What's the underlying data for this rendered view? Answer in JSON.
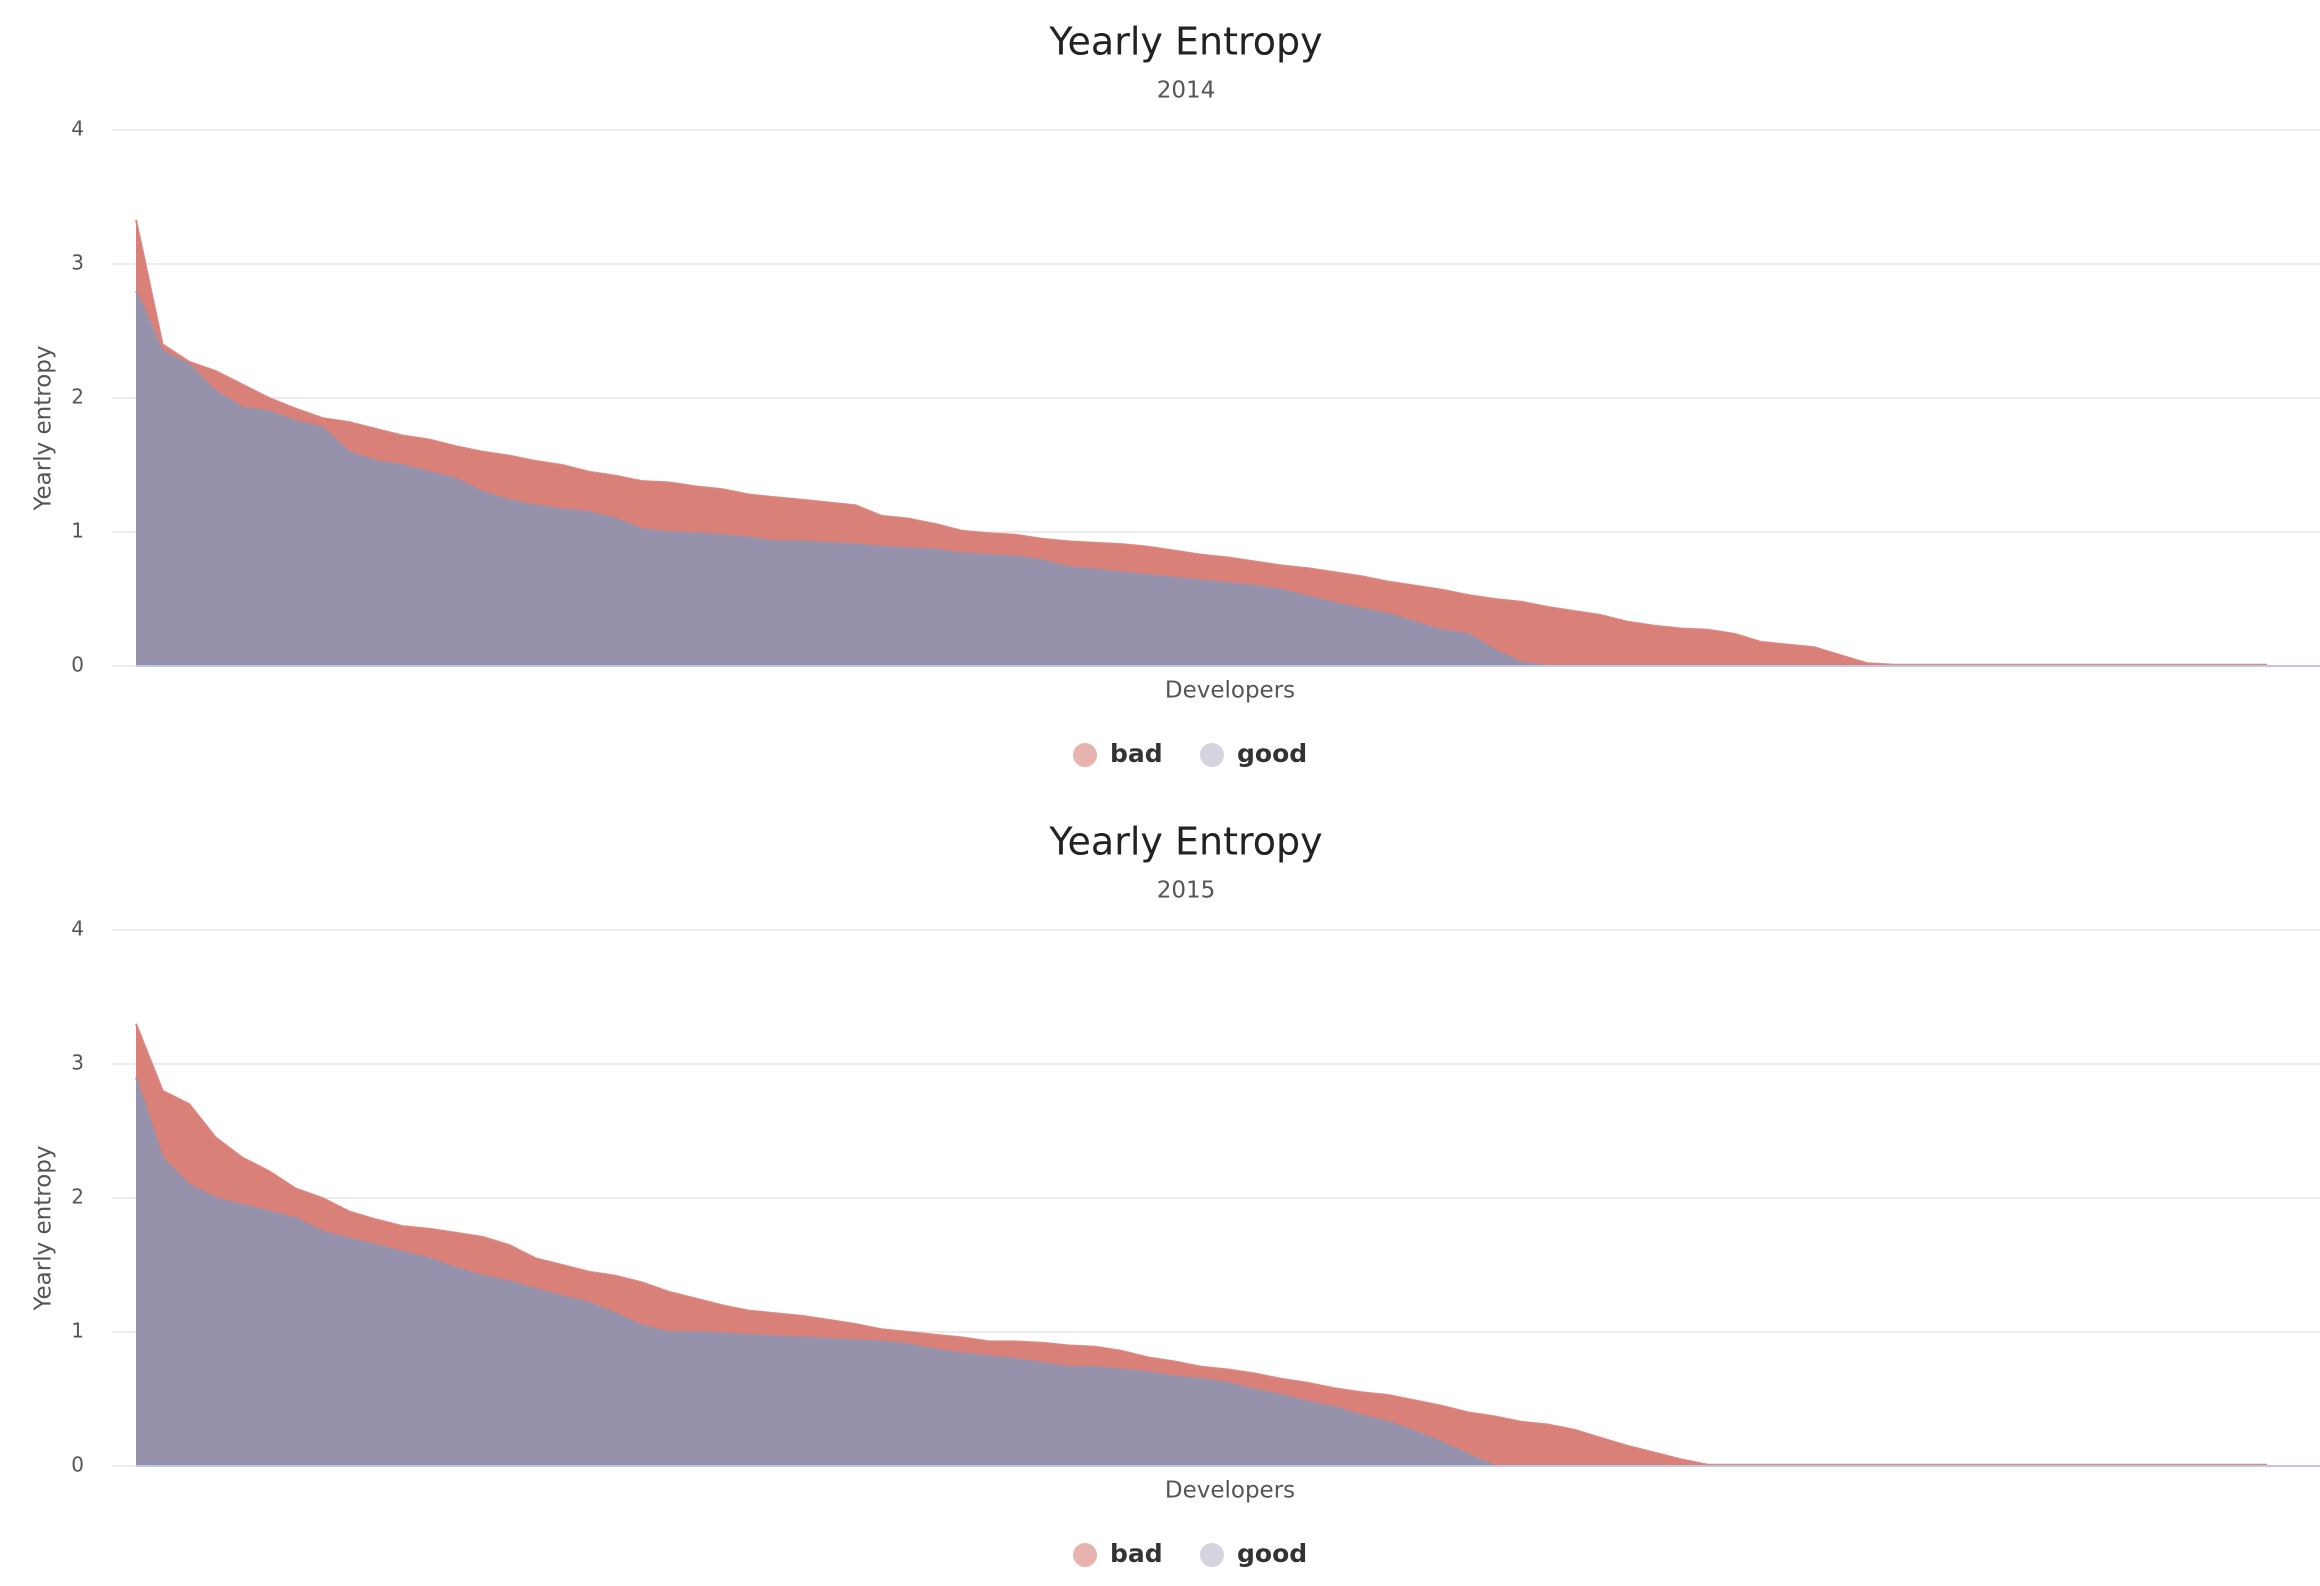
{
  "chart_data": [
    {
      "type": "area",
      "title": "Yearly Entropy",
      "subtitle": "2014",
      "y_label": "Yearly entropy",
      "x_label": "Developers",
      "ylim": [
        0,
        4
      ],
      "yticks": [
        0,
        1,
        2,
        3,
        4
      ],
      "grid": true,
      "legend": "bottom",
      "series": [
        {
          "name": "bad",
          "color": "#d98078",
          "values": [
            3.33,
            2.4,
            2.27,
            2.2,
            2.1,
            2.0,
            1.92,
            1.85,
            1.82,
            1.77,
            1.72,
            1.69,
            1.64,
            1.6,
            1.57,
            1.53,
            1.5,
            1.45,
            1.42,
            1.38,
            1.37,
            1.34,
            1.32,
            1.28,
            1.26,
            1.24,
            1.22,
            1.2,
            1.12,
            1.1,
            1.06,
            1.01,
            0.99,
            0.98,
            0.95,
            0.93,
            0.92,
            0.91,
            0.89,
            0.86,
            0.83,
            0.81,
            0.78,
            0.75,
            0.73,
            0.7,
            0.67,
            0.63,
            0.6,
            0.57,
            0.53,
            0.5,
            0.48,
            0.44,
            0.41,
            0.38,
            0.33,
            0.3,
            0.28,
            0.27,
            0.24,
            0.18,
            0.16,
            0.14,
            0.08,
            0.02,
            0.01,
            0.01,
            0.01,
            0.01,
            0.01,
            0.01,
            0.01,
            0.01,
            0.01,
            0.01,
            0.01,
            0.01,
            0.01,
            0.01,
            0.01
          ]
        },
        {
          "name": "good",
          "color": "#9692ac",
          "values": [
            2.8,
            2.35,
            2.25,
            2.05,
            1.93,
            1.9,
            1.83,
            1.78,
            1.6,
            1.53,
            1.5,
            1.45,
            1.4,
            1.3,
            1.24,
            1.2,
            1.17,
            1.15,
            1.1,
            1.02,
            1.0,
            0.99,
            0.98,
            0.96,
            0.93,
            0.93,
            0.92,
            0.91,
            0.89,
            0.88,
            0.87,
            0.84,
            0.83,
            0.82,
            0.79,
            0.74,
            0.72,
            0.7,
            0.68,
            0.66,
            0.64,
            0.62,
            0.6,
            0.57,
            0.52,
            0.47,
            0.43,
            0.39,
            0.33,
            0.27,
            0.24,
            0.12,
            0.03,
            0,
            0,
            0,
            0,
            0,
            0,
            0,
            0,
            0,
            0,
            0,
            0,
            0,
            0,
            0,
            0,
            0,
            0,
            0,
            0,
            0,
            0,
            0,
            0,
            0,
            0,
            0,
            0
          ]
        }
      ]
    },
    {
      "type": "area",
      "title": "Yearly Entropy",
      "subtitle": "2015",
      "y_label": "Yearly entropy",
      "x_label": "Developers",
      "ylim": [
        0,
        4
      ],
      "yticks": [
        0,
        1,
        2,
        3,
        4
      ],
      "grid": true,
      "legend": "bottom",
      "series": [
        {
          "name": "bad",
          "color": "#d98078",
          "values": [
            3.3,
            2.8,
            2.7,
            2.45,
            2.3,
            2.2,
            2.07,
            2.0,
            1.9,
            1.84,
            1.79,
            1.77,
            1.74,
            1.71,
            1.65,
            1.55,
            1.5,
            1.45,
            1.42,
            1.37,
            1.3,
            1.25,
            1.2,
            1.16,
            1.14,
            1.12,
            1.09,
            1.06,
            1.02,
            1.0,
            0.98,
            0.96,
            0.93,
            0.93,
            0.92,
            0.9,
            0.89,
            0.86,
            0.81,
            0.78,
            0.74,
            0.72,
            0.69,
            0.65,
            0.62,
            0.58,
            0.55,
            0.53,
            0.49,
            0.45,
            0.4,
            0.37,
            0.33,
            0.31,
            0.27,
            0.21,
            0.15,
            0.1,
            0.05,
            0.01,
            0.01,
            0.01,
            0.01,
            0.01,
            0.01,
            0.01,
            0.01,
            0.01,
            0.01,
            0.01,
            0.01,
            0.01,
            0.01,
            0.01,
            0.01,
            0.01,
            0.01,
            0.01,
            0.01,
            0.01,
            0.01
          ]
        },
        {
          "name": "good",
          "color": "#9692ac",
          "values": [
            2.9,
            2.3,
            2.1,
            2.0,
            1.95,
            1.9,
            1.85,
            1.75,
            1.7,
            1.65,
            1.6,
            1.55,
            1.48,
            1.42,
            1.38,
            1.32,
            1.27,
            1.22,
            1.14,
            1.05,
            1.0,
            1.0,
            0.99,
            0.98,
            0.97,
            0.96,
            0.95,
            0.94,
            0.93,
            0.91,
            0.87,
            0.84,
            0.82,
            0.8,
            0.77,
            0.74,
            0.74,
            0.72,
            0.7,
            0.67,
            0.65,
            0.62,
            0.57,
            0.53,
            0.48,
            0.44,
            0.38,
            0.33,
            0.26,
            0.18,
            0.09,
            0,
            0,
            0,
            0,
            0,
            0,
            0,
            0,
            0,
            0,
            0,
            0,
            0,
            0,
            0,
            0,
            0,
            0,
            0,
            0,
            0,
            0,
            0,
            0,
            0,
            0,
            0,
            0,
            0,
            0
          ]
        }
      ]
    }
  ]
}
